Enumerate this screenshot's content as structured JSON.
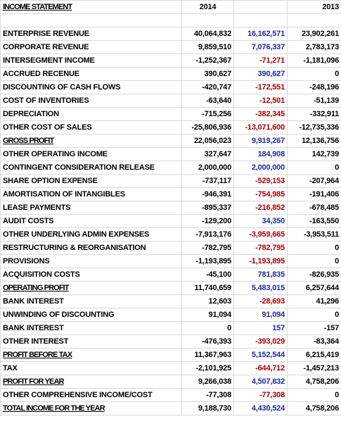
{
  "header": {
    "title": "INCOME STATEMENT",
    "columns": [
      "2014",
      "2013"
    ]
  },
  "colors": {
    "positive": "#1c2a9c",
    "negative": "#a80000"
  },
  "emphasis_rows": [
    8,
    19,
    24,
    26,
    28
  ],
  "table": {
    "rows": [
      [
        "ENTERPRISE REVENUE",
        "40,064,832",
        "16,162,571",
        "23,902,261"
      ],
      [
        "CORPORATE REVENUE",
        "9,859,510",
        "7,076,337",
        "2,783,173"
      ],
      [
        "INTERSEGMENT INCOME",
        "-1,252,367",
        "-71,271",
        "-1,181,096"
      ],
      [
        "ACCRUED RECENUE",
        "390,627",
        "390,627",
        "0"
      ],
      [
        "DISCOUNTING OF CASH FLOWS",
        "-420,747",
        "-172,551",
        "-248,196"
      ],
      [
        "COST OF INVENTORIES",
        "-63,640",
        "-12,501",
        "-51,139"
      ],
      [
        "DEPRECIATION",
        "-715,256",
        "-382,345",
        "-332,911"
      ],
      [
        "OTHER COST OF SALES",
        "-25,806,936",
        "-13,071,600",
        "-12,735,336"
      ],
      [
        "GROSS PROFIT",
        "22,056,023",
        "9,919,267",
        "12,136,756"
      ],
      [
        "OTHER OPERATING INCOME",
        "327,647",
        "184,908",
        "142,739"
      ],
      [
        "CONTINGENT CONSIDERATION RELEASE",
        "2,000,000",
        "2,000,000",
        "0"
      ],
      [
        "SHARE OPTION EXPENSE",
        "-737,117",
        "-529,153",
        "-207,964"
      ],
      [
        "AMORTISATION OF INTANGIBLES",
        "-946,391",
        "-754,985",
        "-191,406"
      ],
      [
        "LEASE PAYMENTS",
        "-895,337",
        "-216,852",
        "-678,485"
      ],
      [
        "AUDIT COSTS",
        "-129,200",
        "34,350",
        "-163,550"
      ],
      [
        "OTHER UNDERLYING ADMIN EXPENSES",
        "-7,913,176",
        "-3,959,665",
        "-3,953,511"
      ],
      [
        "RESTRUCTURING & REORGANISATION",
        "-782,795",
        "-782,795",
        "0"
      ],
      [
        "PROVISIONS",
        "-1,193,895",
        "-1,193,895",
        "0"
      ],
      [
        "ACQUISITION COSTS",
        "-45,100",
        "781,835",
        "-826,935"
      ],
      [
        "OPERATING PROFIT",
        "11,740,659",
        "5,483,015",
        "6,257,644"
      ],
      [
        "BANK INTEREST",
        "12,603",
        "-28,693",
        "41,296"
      ],
      [
        "UNWINDING OF DISCOUNTING",
        "91,094",
        "91,094",
        "0"
      ],
      [
        "BANK INTEREST",
        "0",
        "157",
        "-157"
      ],
      [
        "OTHER INTEREST",
        "-476,393",
        "-393,029",
        "-83,364"
      ],
      [
        "PROFIT BEFORE TAX",
        "11,367,963",
        "5,152,544",
        "6,215,419"
      ],
      [
        "TAX",
        "-2,101,925",
        "-644,712",
        "-1,457,213"
      ],
      [
        "PROFIT FOR YEAR",
        "9,266,038",
        "4,507,832",
        "4,758,206"
      ],
      [
        "OTHER COMPREHENSIVE INCOME/COST",
        "-77,308",
        "-77,308",
        "0"
      ],
      [
        "TOTAL INCOME FOR THE YEAR",
        "9,188,730",
        "4,430,524",
        "4,758,206"
      ]
    ]
  }
}
